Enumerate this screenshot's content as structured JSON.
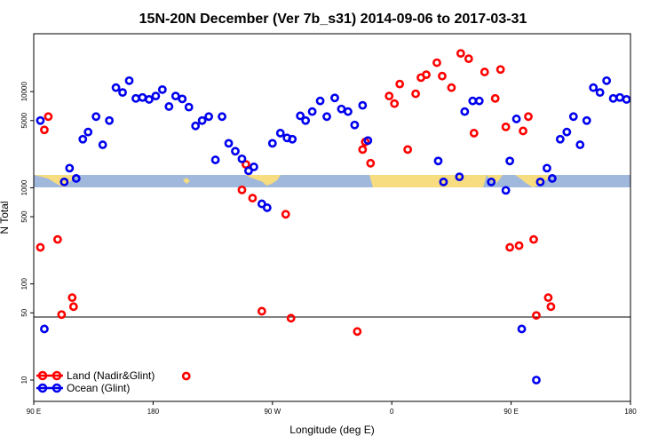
{
  "chart_data": {
    "type": "scatter",
    "title": "15N-20N December (Ver 7b_s31)   2014-09-06 to 2017-03-31",
    "xlabel": "Longitude (deg E)",
    "ylabel": "N Total",
    "x_ticks": [
      {
        "value": 90,
        "label": "90 E"
      },
      {
        "value": 180,
        "label": "180"
      },
      {
        "value": 270,
        "label": "90 W"
      },
      {
        "value": 360,
        "label": "0"
      },
      {
        "value": 450,
        "label": "90 E"
      },
      {
        "value": 540,
        "label": "180"
      }
    ],
    "y_ticks": [
      {
        "value": 10,
        "label": "10"
      },
      {
        "value": 50,
        "label": "50"
      },
      {
        "value": 100,
        "label": "100"
      },
      {
        "value": 500,
        "label": "500"
      },
      {
        "value": 1000,
        "label": "1000"
      },
      {
        "value": 5000,
        "label": "5000"
      },
      {
        "value": 10000,
        "label": "10000"
      }
    ],
    "xlim": [
      90,
      540
    ],
    "ylim": [
      6,
      40000
    ],
    "y_scale": "log",
    "reference_line": 50,
    "legend_position": "bottom-left",
    "colors": {
      "land": "#ff0000",
      "ocean": "#0000ee",
      "band": "#9fb8dc",
      "land_mass": "#f7dc80"
    },
    "series": [
      {
        "name": "Land (Nadir&Glint)",
        "color": "#ff0000",
        "points": [
          [
            95,
            240
          ],
          [
            98,
            4000
          ],
          [
            101,
            5500
          ],
          [
            108,
            290
          ],
          [
            111,
            48
          ],
          [
            119,
            72
          ],
          [
            120,
            58
          ],
          [
            205,
            11
          ],
          [
            247,
            950
          ],
          [
            250,
            1750
          ],
          [
            255,
            780
          ],
          [
            262,
            52
          ],
          [
            280,
            530
          ],
          [
            284,
            44
          ],
          [
            334,
            32
          ],
          [
            338,
            2500
          ],
          [
            340,
            3000
          ],
          [
            344,
            1800
          ],
          [
            358,
            9000
          ],
          [
            362,
            7500
          ],
          [
            366,
            12000
          ],
          [
            372,
            2500
          ],
          [
            378,
            9500
          ],
          [
            382,
            14000
          ],
          [
            386,
            15000
          ],
          [
            394,
            20000
          ],
          [
            398,
            14500
          ],
          [
            405,
            11000
          ],
          [
            412,
            25000
          ],
          [
            418,
            22000
          ],
          [
            422,
            3700
          ],
          [
            430,
            16000
          ],
          [
            438,
            8500
          ],
          [
            442,
            17000
          ],
          [
            446,
            4300
          ],
          [
            449,
            240
          ],
          [
            456,
            250
          ],
          [
            459,
            3900
          ],
          [
            463,
            5500
          ],
          [
            467,
            290
          ],
          [
            469,
            47
          ],
          [
            478,
            72
          ],
          [
            480,
            58
          ]
        ]
      },
      {
        "name": "Ocean (Glint)",
        "color": "#0000ee",
        "points": [
          [
            95,
            5000
          ],
          [
            98,
            34
          ],
          [
            113,
            1150
          ],
          [
            117,
            1600
          ],
          [
            122,
            1250
          ],
          [
            127,
            3200
          ],
          [
            131,
            3800
          ],
          [
            137,
            5500
          ],
          [
            142,
            2800
          ],
          [
            147,
            5000
          ],
          [
            152,
            11000
          ],
          [
            157,
            9800
          ],
          [
            162,
            13000
          ],
          [
            167,
            8500
          ],
          [
            172,
            8700
          ],
          [
            177,
            8300
          ],
          [
            182,
            9000
          ],
          [
            187,
            10500
          ],
          [
            192,
            7000
          ],
          [
            197,
            9000
          ],
          [
            202,
            8400
          ],
          [
            207,
            6900
          ],
          [
            212,
            4400
          ],
          [
            217,
            5000
          ],
          [
            222,
            5500
          ],
          [
            227,
            1950
          ],
          [
            232,
            5500
          ],
          [
            237,
            2900
          ],
          [
            242,
            2400
          ],
          [
            247,
            2000
          ],
          [
            252,
            1500
          ],
          [
            256,
            1650
          ],
          [
            262,
            680
          ],
          [
            266,
            620
          ],
          [
            270,
            2900
          ],
          [
            276,
            3700
          ],
          [
            281,
            3300
          ],
          [
            285,
            3200
          ],
          [
            291,
            5600
          ],
          [
            295,
            5000
          ],
          [
            300,
            6200
          ],
          [
            306,
            8000
          ],
          [
            311,
            5500
          ],
          [
            317,
            8600
          ],
          [
            322,
            6600
          ],
          [
            327,
            6200
          ],
          [
            332,
            4500
          ],
          [
            338,
            7200
          ],
          [
            342,
            3100
          ],
          [
            395,
            1900
          ],
          [
            399,
            1150
          ],
          [
            411,
            1300
          ],
          [
            415,
            6200
          ],
          [
            421,
            8000
          ],
          [
            426,
            8000
          ],
          [
            435,
            1150
          ],
          [
            446,
            940
          ],
          [
            449,
            1900
          ],
          [
            454,
            5200
          ],
          [
            458,
            34
          ],
          [
            469,
            10
          ],
          [
            472,
            1150
          ],
          [
            477,
            1600
          ],
          [
            481,
            1250
          ],
          [
            487,
            3200
          ],
          [
            492,
            3800
          ],
          [
            497,
            5500
          ],
          [
            502,
            2800
          ],
          [
            507,
            5000
          ],
          [
            512,
            11000
          ],
          [
            517,
            9800
          ],
          [
            522,
            13000
          ],
          [
            527,
            8500
          ],
          [
            532,
            8700
          ],
          [
            537,
            8300
          ]
        ]
      }
    ]
  }
}
